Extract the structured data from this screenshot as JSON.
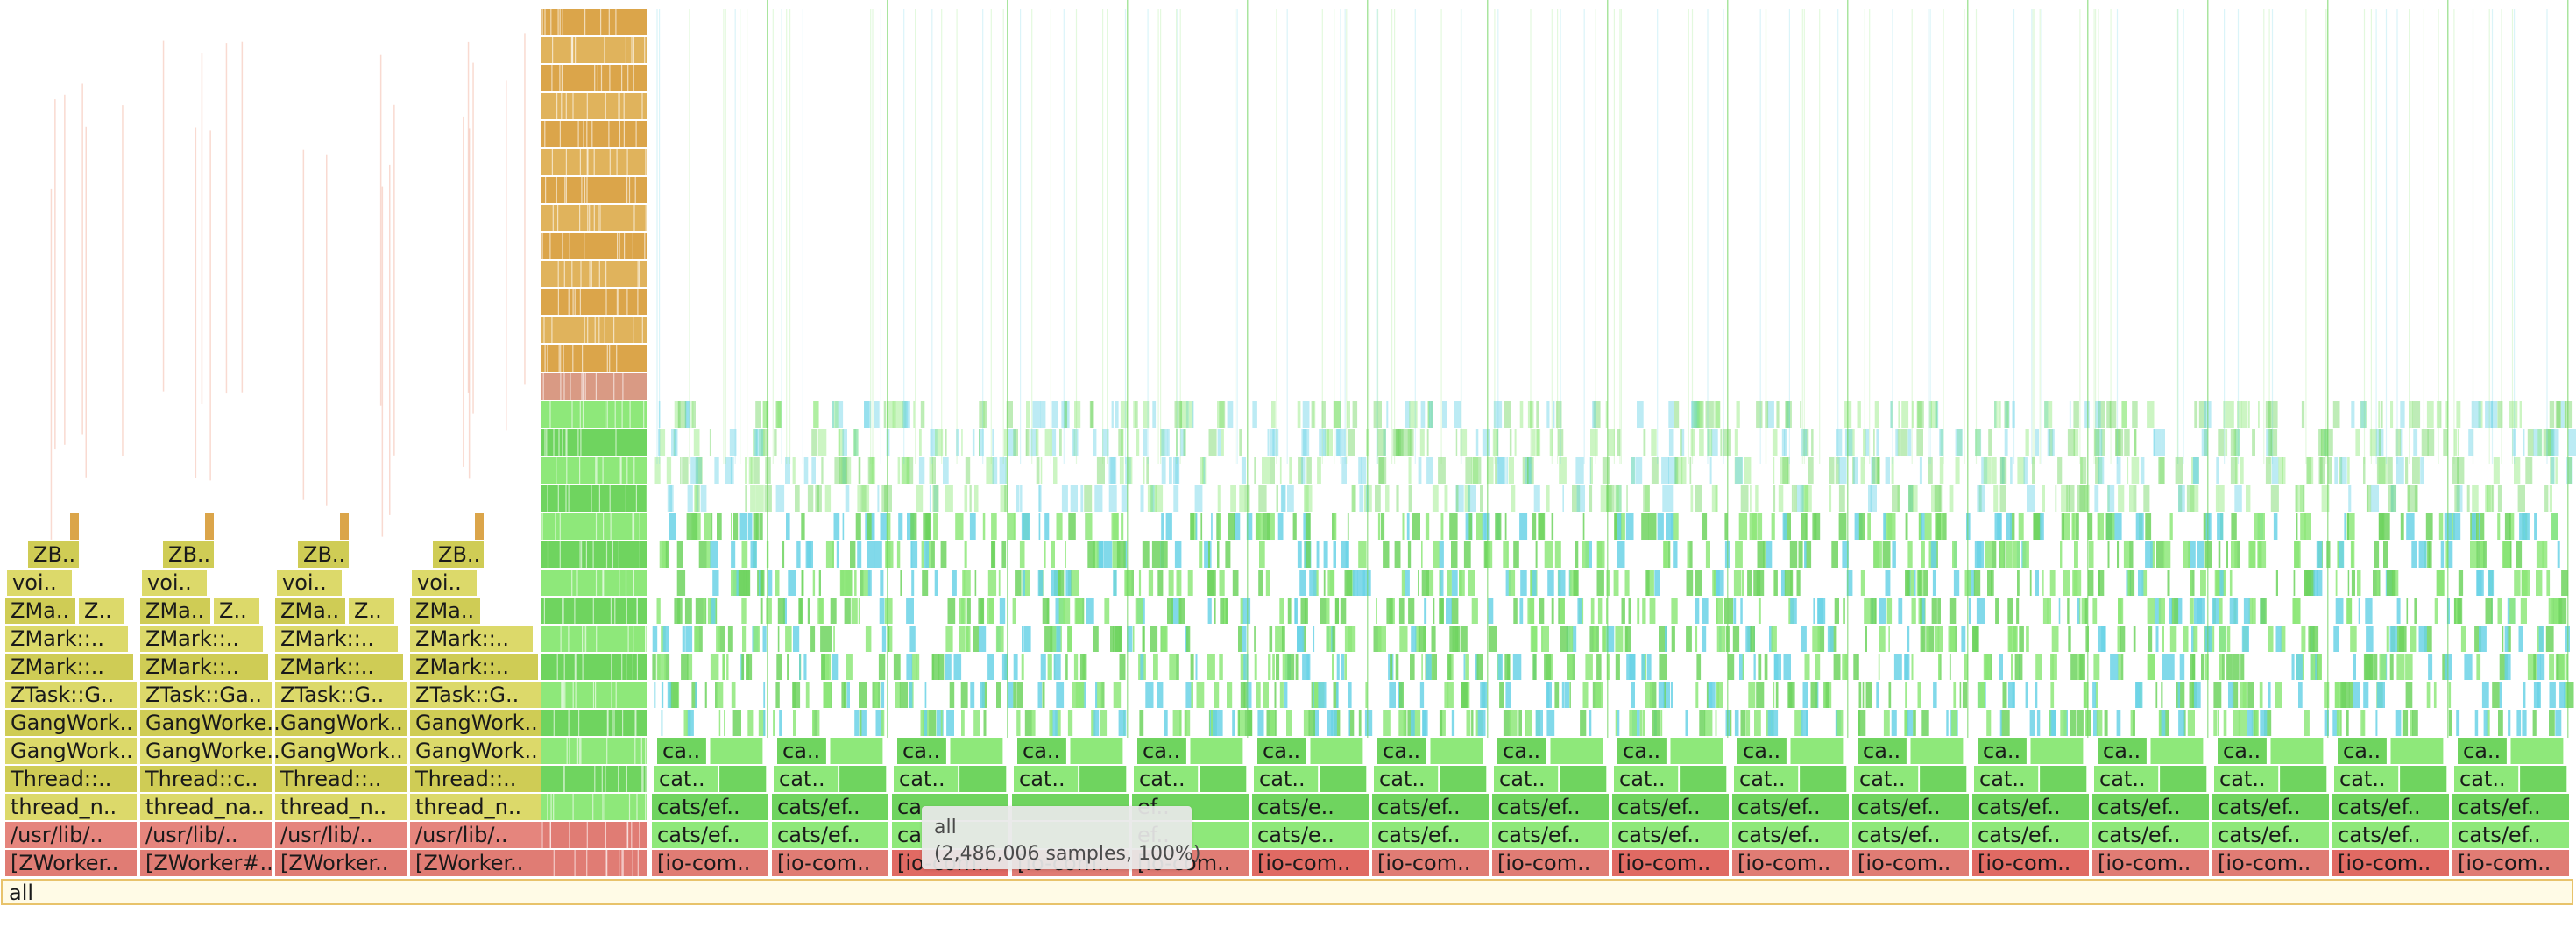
{
  "chart_data": {
    "type": "flamegraph",
    "total_samples": "2,486,006",
    "root": "all",
    "colors": {
      "root_fill": "#fffbe6",
      "root_stroke": "#e8c36b",
      "worker_red": "#e07c74",
      "lib_red": "#e5857d",
      "yellow": "#dcd96a",
      "yellow_dark": "#cfcc55",
      "green": "#8ee87a",
      "green_dark": "#6fd45f",
      "cyan": "#6bd2e6",
      "orange": "#dba54a",
      "salmon": "#f3b5a3"
    },
    "zgc_workers": [
      {
        "worker": "[ZWorker..",
        "lib": "/usr/lib/..",
        "start": "thread_n..",
        "thread": "Thread::..",
        "gang1": "GangWork..",
        "gang2": "GangWork..",
        "task": "ZTask::G..",
        "mark1": "ZMark::..",
        "mark2": "ZMark::..",
        "mark3a": "ZMa..",
        "mark3b": "Z..",
        "void": "voi..",
        "zb": "ZB.."
      },
      {
        "worker": "[ZWorker#..",
        "lib": "/usr/lib/..",
        "start": "thread_na..",
        "thread": "Thread::c..",
        "gang1": "GangWorke..",
        "gang2": "GangWorke..",
        "task": "ZTask::Ga..",
        "mark1": "ZMark::..",
        "mark2": "ZMark::..",
        "mark3a": "ZMa..",
        "mark3b": "Z..",
        "void": "voi..",
        "zb": "ZB.."
      },
      {
        "worker": "[ZWorker..",
        "lib": "/usr/lib/..",
        "start": "thread_n..",
        "thread": "Thread::..",
        "gang1": "GangWork..",
        "gang2": "GangWork..",
        "task": "ZTask::G..",
        "mark1": "ZMark::..",
        "mark2": "ZMark::..",
        "mark3a": "ZMa..",
        "mark3b": "Z..",
        "void": "voi..",
        "zb": "ZB.."
      },
      {
        "worker": "[ZWorker..",
        "lib": "/usr/lib/..",
        "start": "thread_n..",
        "thread": "Thread::..",
        "gang1": "GangWork..",
        "gang2": "GangWork..",
        "task": "ZTask::G..",
        "mark1": "ZMark::..",
        "mark2": "ZMark::..",
        "mark3a": "ZMa..",
        "mark3b": "",
        "void": "voi..",
        "zb": "ZB.."
      }
    ],
    "io_compute": [
      {
        "base": "[io-com..",
        "cats1": "cats/ef..",
        "cats2": "cat..",
        "ca": "ca.."
      },
      {
        "base": "[io-com..",
        "cats1": "cats/ef..",
        "cats2": "cat..",
        "ca": "ca.."
      },
      {
        "base": "[io-com..",
        "cats1": "ca",
        "cats2": "cat..",
        "ca": "ca.."
      },
      {
        "base": "[io-com..",
        "cats1": "",
        "cats2": "cat..",
        "ca": "ca.."
      },
      {
        "base": "[io-com..",
        "cats1": "ef..",
        "cats2": "cat..",
        "ca": "ca.."
      },
      {
        "base": "[io-com..",
        "cats1": "cats/e..",
        "cats2": "cat..",
        "ca": "ca.."
      },
      {
        "base": "[io-com..",
        "cats1": "cats/ef..",
        "cats2": "cat..",
        "ca": "ca.."
      },
      {
        "base": "[io-com..",
        "cats1": "cats/ef..",
        "cats2": "cat..",
        "ca": "ca.."
      },
      {
        "base": "[io-com..",
        "cats1": "cats/ef..",
        "cats2": "cat..",
        "ca": "ca.."
      },
      {
        "base": "[io-com..",
        "cats1": "cats/ef..",
        "cats2": "cat..",
        "ca": "ca.."
      },
      {
        "base": "[io-com..",
        "cats1": "cats/ef..",
        "cats2": "cat..",
        "ca": "ca.."
      },
      {
        "base": "[io-com..",
        "cats1": "cats/ef..",
        "cats2": "cat..",
        "ca": "ca.."
      },
      {
        "base": "[io-com..",
        "cats1": "cats/ef..",
        "cats2": "cat..",
        "ca": "ca.."
      },
      {
        "base": "[io-com..",
        "cats1": "cats/ef..",
        "cats2": "cat..",
        "ca": "ca.."
      },
      {
        "base": "[io-com..",
        "cats1": "cats/ef..",
        "cats2": "cat..",
        "ca": "ca.."
      },
      {
        "base": "[io-com..",
        "cats1": "cats/ef..",
        "cats2": "cat..",
        "ca": "ca.."
      }
    ]
  },
  "tooltip": {
    "name": "all",
    "details": "(2,486,006 samples, 100%)"
  }
}
